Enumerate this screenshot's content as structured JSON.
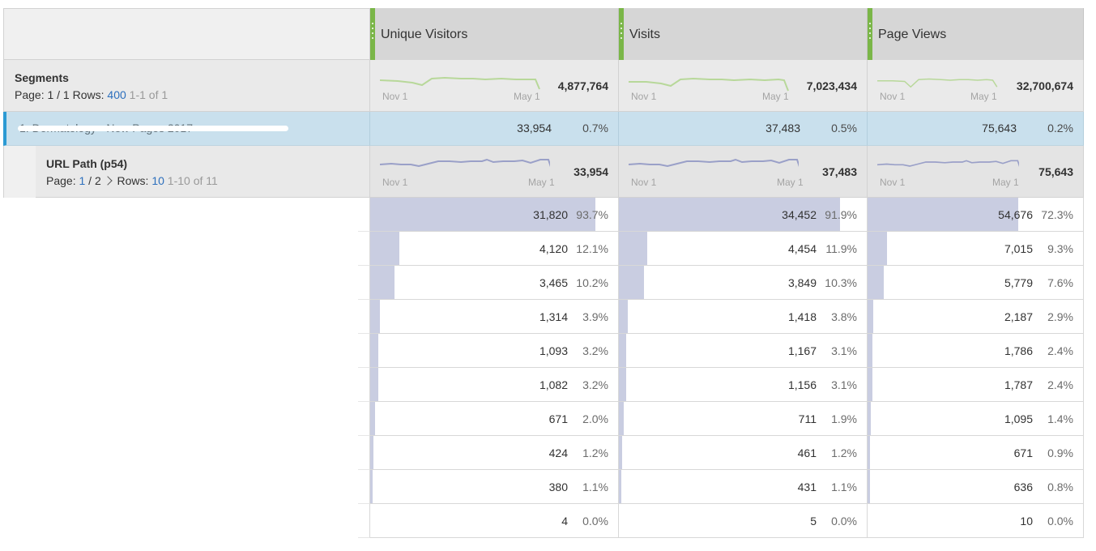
{
  "columns": [
    {
      "title": "Unique Visitors"
    },
    {
      "title": "Visits"
    },
    {
      "title": "Page Views"
    }
  ],
  "segments": {
    "title": "Segments",
    "page_label": "Page: 1 / 1",
    "rows_label": "Rows:",
    "rows_value": "400",
    "range": "1-1 of 1",
    "totals": [
      "4,877,764",
      "7,023,434",
      "32,700,674"
    ],
    "spark_start": "Nov 1",
    "spark_end": "May 1"
  },
  "selected_row": {
    "label": "1.   Dermatology - New Pages 2017",
    "values": [
      {
        "num": "33,954",
        "pct": "0.7%"
      },
      {
        "num": "37,483",
        "pct": "0.5%"
      },
      {
        "num": "75,643",
        "pct": "0.2%"
      }
    ]
  },
  "dimension": {
    "title": "URL Path (p54)",
    "page_label": "Page: ",
    "page_current": "1",
    "page_total": " / 2",
    "rows_label": "Rows:",
    "rows_value": "10",
    "range": "1-10 of 11",
    "totals": [
      "33,954",
      "37,483",
      "75,643"
    ],
    "spark_start": "Nov 1",
    "spark_end": "May 1"
  },
  "rows": [
    {
      "cells": [
        {
          "num": "31,820",
          "pct": "93.7%",
          "frac": 0.937
        },
        {
          "num": "34,452",
          "pct": "91.9%",
          "frac": 0.919
        },
        {
          "num": "54,676",
          "pct": "72.3%",
          "frac": 0.723
        }
      ]
    },
    {
      "cells": [
        {
          "num": "4,120",
          "pct": "12.1%",
          "frac": 0.121
        },
        {
          "num": "4,454",
          "pct": "11.9%",
          "frac": 0.119
        },
        {
          "num": "7,015",
          "pct": "9.3%",
          "frac": 0.093
        }
      ]
    },
    {
      "cells": [
        {
          "num": "3,465",
          "pct": "10.2%",
          "frac": 0.102
        },
        {
          "num": "3,849",
          "pct": "10.3%",
          "frac": 0.103
        },
        {
          "num": "5,779",
          "pct": "7.6%",
          "frac": 0.076
        }
      ]
    },
    {
      "cells": [
        {
          "num": "1,314",
          "pct": "3.9%",
          "frac": 0.039
        },
        {
          "num": "1,418",
          "pct": "3.8%",
          "frac": 0.038
        },
        {
          "num": "2,187",
          "pct": "2.9%",
          "frac": 0.029
        }
      ]
    },
    {
      "cells": [
        {
          "num": "1,093",
          "pct": "3.2%",
          "frac": 0.032
        },
        {
          "num": "1,167",
          "pct": "3.1%",
          "frac": 0.031
        },
        {
          "num": "1,786",
          "pct": "2.4%",
          "frac": 0.024
        }
      ]
    },
    {
      "cells": [
        {
          "num": "1,082",
          "pct": "3.2%",
          "frac": 0.032
        },
        {
          "num": "1,156",
          "pct": "3.1%",
          "frac": 0.031
        },
        {
          "num": "1,787",
          "pct": "2.4%",
          "frac": 0.024
        }
      ]
    },
    {
      "cells": [
        {
          "num": "671",
          "pct": "2.0%",
          "frac": 0.02
        },
        {
          "num": "711",
          "pct": "1.9%",
          "frac": 0.019
        },
        {
          "num": "1,095",
          "pct": "1.4%",
          "frac": 0.014
        }
      ]
    },
    {
      "cells": [
        {
          "num": "424",
          "pct": "1.2%",
          "frac": 0.012
        },
        {
          "num": "461",
          "pct": "1.2%",
          "frac": 0.012
        },
        {
          "num": "671",
          "pct": "0.9%",
          "frac": 0.009
        }
      ]
    },
    {
      "cells": [
        {
          "num": "380",
          "pct": "1.1%",
          "frac": 0.011
        },
        {
          "num": "431",
          "pct": "1.1%",
          "frac": 0.011
        },
        {
          "num": "636",
          "pct": "0.8%",
          "frac": 0.008
        }
      ]
    },
    {
      "cells": [
        {
          "num": "4",
          "pct": "0.0%",
          "frac": 0.0
        },
        {
          "num": "5",
          "pct": "0.0%",
          "frac": 0.0
        },
        {
          "num": "10",
          "pct": "0.0%",
          "frac": 0.0
        }
      ]
    }
  ],
  "colors": {
    "header_grip": "#7ab648",
    "segment_sparkline": "#b8d89a",
    "dimension_sparkline": "#9aa0c8",
    "bar": "#c9cde1",
    "selected": "#c9e0ed",
    "link": "#2c6fbd"
  }
}
